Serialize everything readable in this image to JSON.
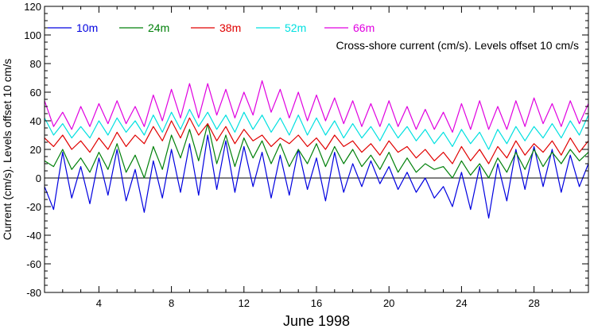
{
  "chart_data": {
    "type": "line",
    "title": "",
    "xlabel": "June 1998",
    "ylabel": "Current (cm/s). Levels offset 10 cm/s",
    "annotation": "Cross-shore current (cm/s). Levels offset 10 cm/s",
    "xlim": [
      1,
      31
    ],
    "ylim": [
      -80,
      120
    ],
    "x_ticks": [
      4,
      8,
      12,
      16,
      20,
      24,
      28
    ],
    "y_ticks": [
      -80,
      -60,
      -40,
      -20,
      0,
      20,
      40,
      60,
      80,
      100,
      120
    ],
    "legend_position": "top-left",
    "series": [
      {
        "name": "10m",
        "color": "#0000e0",
        "x": [
          1.0,
          1.5,
          2.0,
          2.5,
          3.0,
          3.5,
          4.0,
          4.5,
          5.0,
          5.5,
          6.0,
          6.5,
          7.0,
          7.5,
          8.0,
          8.5,
          9.0,
          9.5,
          10.0,
          10.5,
          11.0,
          11.5,
          12.0,
          12.5,
          13.0,
          13.5,
          14.0,
          14.5,
          15.0,
          15.5,
          16.0,
          16.5,
          17.0,
          17.5,
          18.0,
          18.5,
          19.0,
          19.5,
          20.0,
          20.5,
          21.0,
          21.5,
          22.0,
          22.5,
          23.0,
          23.5,
          24.0,
          24.5,
          25.0,
          25.5,
          26.0,
          26.5,
          27.0,
          27.5,
          28.0,
          28.5,
          29.0,
          29.5,
          30.0,
          30.5,
          31.0
        ],
        "values": [
          -6,
          -22,
          18,
          -14,
          8,
          -18,
          14,
          -12,
          20,
          -16,
          6,
          -24,
          12,
          -14,
          20,
          -10,
          24,
          -12,
          30,
          -8,
          26,
          -10,
          22,
          -6,
          18,
          -14,
          16,
          -12,
          20,
          -8,
          14,
          -16,
          18,
          -10,
          10,
          -6,
          12,
          -4,
          8,
          -8,
          4,
          -10,
          0,
          -14,
          -6,
          -20,
          4,
          -22,
          8,
          -28,
          10,
          -16,
          20,
          -8,
          22,
          -6,
          20,
          -10,
          16,
          -6,
          10
        ]
      },
      {
        "name": "24m",
        "color": "#00800a",
        "x": [
          1.0,
          1.5,
          2.0,
          2.5,
          3.0,
          3.5,
          4.0,
          4.5,
          5.0,
          5.5,
          6.0,
          6.5,
          7.0,
          7.5,
          8.0,
          8.5,
          9.0,
          9.5,
          10.0,
          10.5,
          11.0,
          11.5,
          12.0,
          12.5,
          13.0,
          13.5,
          14.0,
          14.5,
          15.0,
          15.5,
          16.0,
          16.5,
          17.0,
          17.5,
          18.0,
          18.5,
          19.0,
          19.5,
          20.0,
          20.5,
          21.0,
          21.5,
          22.0,
          22.5,
          23.0,
          23.5,
          24.0,
          24.5,
          25.0,
          25.5,
          26.0,
          26.5,
          27.0,
          27.5,
          28.0,
          28.5,
          29.0,
          29.5,
          30.0,
          30.5,
          31.0
        ],
        "values": [
          12,
          8,
          20,
          6,
          14,
          4,
          18,
          6,
          24,
          4,
          16,
          0,
          22,
          6,
          30,
          14,
          34,
          12,
          38,
          10,
          30,
          8,
          28,
          14,
          26,
          10,
          24,
          8,
          20,
          10,
          24,
          8,
          22,
          10,
          20,
          8,
          16,
          6,
          18,
          4,
          14,
          4,
          10,
          6,
          8,
          0,
          12,
          2,
          10,
          0,
          14,
          4,
          18,
          6,
          20,
          8,
          18,
          10,
          20,
          12,
          18
        ]
      },
      {
        "name": "38m",
        "color": "#e00000",
        "x": [
          1.0,
          1.5,
          2.0,
          2.5,
          3.0,
          3.5,
          4.0,
          4.5,
          5.0,
          5.5,
          6.0,
          6.5,
          7.0,
          7.5,
          8.0,
          8.5,
          9.0,
          9.5,
          10.0,
          10.5,
          11.0,
          11.5,
          12.0,
          12.5,
          13.0,
          13.5,
          14.0,
          14.5,
          15.0,
          15.5,
          16.0,
          16.5,
          17.0,
          17.5,
          18.0,
          18.5,
          19.0,
          19.5,
          20.0,
          20.5,
          21.0,
          21.5,
          22.0,
          22.5,
          23.0,
          23.5,
          24.0,
          24.5,
          25.0,
          25.5,
          26.0,
          26.5,
          27.0,
          27.5,
          28.0,
          28.5,
          29.0,
          29.5,
          30.0,
          30.5,
          31.0
        ],
        "values": [
          28,
          22,
          30,
          20,
          26,
          18,
          28,
          20,
          32,
          22,
          30,
          24,
          36,
          26,
          40,
          28,
          42,
          30,
          38,
          26,
          36,
          24,
          34,
          26,
          30,
          22,
          28,
          24,
          30,
          22,
          28,
          20,
          30,
          22,
          26,
          18,
          24,
          16,
          26,
          18,
          22,
          14,
          20,
          12,
          18,
          10,
          22,
          12,
          20,
          10,
          22,
          14,
          26,
          16,
          24,
          18,
          26,
          16,
          28,
          18,
          26
        ]
      },
      {
        "name": "52m",
        "color": "#00e0e0",
        "x": [
          1.0,
          1.5,
          2.0,
          2.5,
          3.0,
          3.5,
          4.0,
          4.5,
          5.0,
          5.5,
          6.0,
          6.5,
          7.0,
          7.5,
          8.0,
          8.5,
          9.0,
          9.5,
          10.0,
          10.5,
          11.0,
          11.5,
          12.0,
          12.5,
          13.0,
          13.5,
          14.0,
          14.5,
          15.0,
          15.5,
          16.0,
          16.5,
          17.0,
          17.5,
          18.0,
          18.5,
          19.0,
          19.5,
          20.0,
          20.5,
          21.0,
          21.5,
          22.0,
          22.5,
          23.0,
          23.5,
          24.0,
          24.5,
          25.0,
          25.5,
          26.0,
          26.5,
          27.0,
          27.5,
          28.0,
          28.5,
          29.0,
          29.5,
          30.0,
          30.5,
          31.0
        ],
        "values": [
          42,
          30,
          38,
          28,
          36,
          28,
          40,
          30,
          42,
          32,
          40,
          30,
          44,
          32,
          46,
          34,
          48,
          36,
          46,
          34,
          44,
          32,
          46,
          34,
          44,
          32,
          42,
          30,
          44,
          30,
          42,
          30,
          40,
          28,
          38,
          28,
          36,
          26,
          38,
          28,
          36,
          26,
          34,
          24,
          32,
          22,
          34,
          24,
          32,
          20,
          34,
          24,
          36,
          26,
          36,
          28,
          38,
          28,
          40,
          30,
          44
        ]
      },
      {
        "name": "66m",
        "color": "#e000e0",
        "x": [
          1.0,
          1.5,
          2.0,
          2.5,
          3.0,
          3.5,
          4.0,
          4.5,
          5.0,
          5.5,
          6.0,
          6.5,
          7.0,
          7.5,
          8.0,
          8.5,
          9.0,
          9.5,
          10.0,
          10.5,
          11.0,
          11.5,
          12.0,
          12.5,
          13.0,
          13.5,
          14.0,
          14.5,
          15.0,
          15.5,
          16.0,
          16.5,
          17.0,
          17.5,
          18.0,
          18.5,
          19.0,
          19.5,
          20.0,
          20.5,
          21.0,
          21.5,
          22.0,
          22.5,
          23.0,
          23.5,
          24.0,
          24.5,
          25.0,
          25.5,
          26.0,
          26.5,
          27.0,
          27.5,
          28.0,
          28.5,
          29.0,
          29.5,
          30.0,
          30.5,
          31.0
        ],
        "values": [
          54,
          36,
          46,
          34,
          50,
          36,
          52,
          38,
          54,
          38,
          50,
          36,
          58,
          40,
          62,
          42,
          66,
          42,
          66,
          44,
          62,
          42,
          60,
          44,
          68,
          46,
          62,
          42,
          60,
          40,
          58,
          40,
          56,
          38,
          54,
          36,
          52,
          36,
          54,
          36,
          50,
          34,
          48,
          34,
          46,
          32,
          52,
          34,
          54,
          34,
          50,
          34,
          54,
          36,
          56,
          38,
          52,
          36,
          54,
          38,
          52
        ]
      }
    ]
  }
}
